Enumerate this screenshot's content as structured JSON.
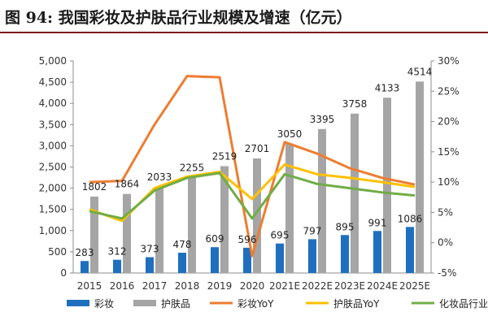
{
  "title": "图 94:  我国彩妆及护肤品行业规模及增速（亿元）",
  "chart_data": {
    "type": "bar",
    "categories": [
      "2015",
      "2016",
      "2017",
      "2018",
      "2019",
      "2020",
      "2021E",
      "2022E",
      "2023E",
      "2024E",
      "2025E"
    ],
    "series": [
      {
        "name": "彩妆",
        "kind": "bar",
        "axis": "left",
        "color": "#1f6fbf",
        "values": [
          283,
          312,
          373,
          478,
          609,
          596,
          695,
          797,
          895,
          991,
          1086
        ]
      },
      {
        "name": "护肤品",
        "kind": "bar",
        "axis": "left",
        "color": "#a5a5a5",
        "values": [
          1802,
          1864,
          2033,
          2255,
          2519,
          2701,
          3050,
          3395,
          3758,
          4133,
          4514
        ]
      },
      {
        "name": "彩妆YoY",
        "kind": "line",
        "axis": "right",
        "color": "#ed7d31",
        "values": [
          10.0,
          10.2,
          19.5,
          27.5,
          27.3,
          -2.2,
          16.6,
          14.7,
          12.3,
          10.7,
          9.6
        ]
      },
      {
        "name": "护肤品YoY",
        "kind": "line",
        "axis": "right",
        "color": "#ffc000",
        "values": [
          5.5,
          3.6,
          9.0,
          10.9,
          11.7,
          7.2,
          12.9,
          11.3,
          10.7,
          10.0,
          9.2
        ]
      },
      {
        "name": "化妆品行业YoY",
        "kind": "line",
        "axis": "right",
        "color": "#70ad47",
        "values": [
          5.2,
          4.0,
          8.6,
          10.7,
          11.5,
          4.0,
          11.3,
          9.7,
          9.0,
          8.3,
          7.8
        ]
      }
    ],
    "left_axis": {
      "ylim": [
        0,
        5000
      ],
      "ticks": [
        "0",
        "500",
        "1,000",
        "1,500",
        "2,000",
        "2,500",
        "3,000",
        "3,500",
        "4,000",
        "4,500",
        "5,000"
      ]
    },
    "right_axis": {
      "ylim": [
        -5,
        30
      ],
      "ticks": [
        "-5%",
        "0%",
        "5%",
        "10%",
        "15%",
        "20%",
        "25%",
        "30%"
      ]
    },
    "legend_position": "bottom",
    "grid": false
  }
}
